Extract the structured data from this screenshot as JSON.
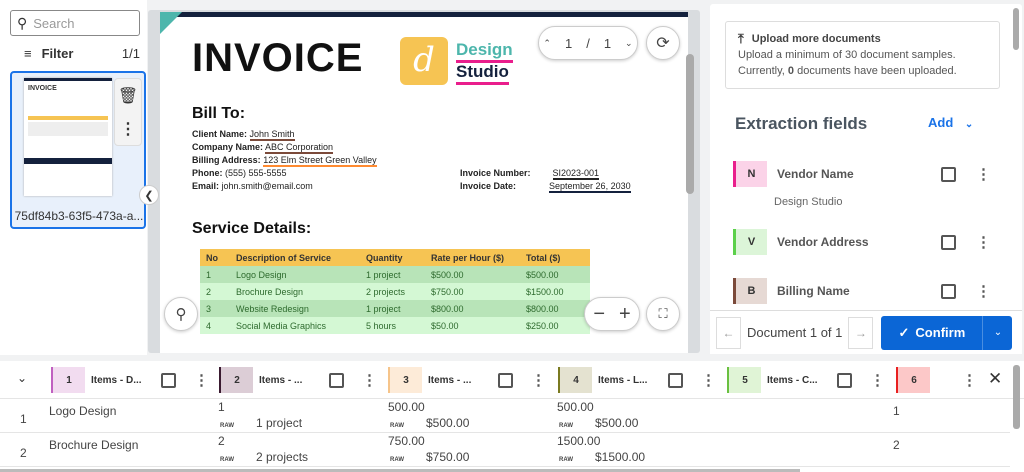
{
  "sidebar": {
    "search_placeholder": "Search",
    "filter_label": "Filter",
    "filter_count": "1/1",
    "thumbnail_name": "75df84b3-63f5-473a-a..."
  },
  "document": {
    "title": "INVOICE",
    "logo_letter": "d",
    "logo_line1": "Design",
    "logo_line2": "Studio",
    "bill_to": "Bill To:",
    "client_label": "Client Name:",
    "client": "John Smith",
    "company_label": "Company Name:",
    "company": "ABC Corporation",
    "address_label": "Billing Address:",
    "address": "123 Elm Street Green Valley",
    "phone_label": "Phone:",
    "phone": "(555) 555-5555",
    "email_label": "Email:",
    "email": "john.smith@email.com",
    "invno_label": "Invoice Number:",
    "invno": "SI2023-001",
    "invdate_label": "Invoice Date:",
    "invdate": "September 26, 2030",
    "service_title": "Service Details:",
    "table_headers": [
      "No",
      "Description of Service",
      "Quantity",
      "Rate per Hour ($)",
      "Total ($)"
    ],
    "rows": [
      [
        "1",
        "Logo Design",
        "1 project",
        "$500.00",
        "$500.00"
      ],
      [
        "2",
        "Brochure Design",
        "2 projects",
        "$750.00",
        "$1500.00"
      ],
      [
        "3",
        "Website Redesign",
        "1 project",
        "$800.00",
        "$800.00"
      ],
      [
        "4",
        "Social Media Graphics",
        "5 hours",
        "$50.00",
        "$250.00"
      ]
    ]
  },
  "viewer": {
    "page_current": "1",
    "page_sep": "/",
    "page_total": "1"
  },
  "upload": {
    "title": "Upload more documents",
    "line1": "Upload a minimum of 30 document samples.",
    "line2_pre": "Currently, ",
    "line2_count": "0",
    "line2_post": " documents have been uploaded."
  },
  "extraction": {
    "title": "Extraction fields",
    "add_label": "Add",
    "fields": [
      {
        "badge": "N",
        "name": "Vendor Name",
        "value": "Design Studio",
        "color": "#e91e8c",
        "bg": "#fbd3e8"
      },
      {
        "badge": "V",
        "name": "Vendor Address",
        "value": "",
        "color": "#5bd04a",
        "bg": "#dcf5d8"
      },
      {
        "badge": "B",
        "name": "Billing Name",
        "value": "",
        "color": "#7b4a3a",
        "bg": "#e6d9d4"
      }
    ]
  },
  "footer": {
    "doc_counter": "Document 1 of 1",
    "confirm_label": "Confirm"
  },
  "items_table": {
    "columns": [
      {
        "badge": "1",
        "label": "Items - D...",
        "color": "#c060c0",
        "bg": "#f2dcf0"
      },
      {
        "badge": "2",
        "label": "Items - ...",
        "color": "#3a1a30",
        "bg": "#dccdd6"
      },
      {
        "badge": "3",
        "label": "Items - ...",
        "color": "#f6c48a",
        "bg": "#fdebd8"
      },
      {
        "badge": "4",
        "label": "Items - L...",
        "color": "#7a7a20",
        "bg": "#e4e2d0"
      },
      {
        "badge": "5",
        "label": "Items - C...",
        "color": "#6ac040",
        "bg": "#e0f4d6"
      },
      {
        "badge": "6",
        "label": "",
        "color": "#e82020",
        "bg": "#fcc8c8"
      }
    ],
    "raw_label": "RAW",
    "rows": [
      {
        "index": "1",
        "desc": "Logo Design",
        "qty": "1",
        "qty_raw": "1 project",
        "rate": "500.00",
        "rate_raw": "$500.00",
        "total": "500.00",
        "total_raw": "$500.00",
        "no": "1"
      },
      {
        "index": "2",
        "desc": "Brochure Design",
        "qty": "2",
        "qty_raw": "2 projects",
        "rate": "750.00",
        "rate_raw": "$750.00",
        "total": "1500.00",
        "total_raw": "$1500.00",
        "no": "2"
      }
    ]
  }
}
